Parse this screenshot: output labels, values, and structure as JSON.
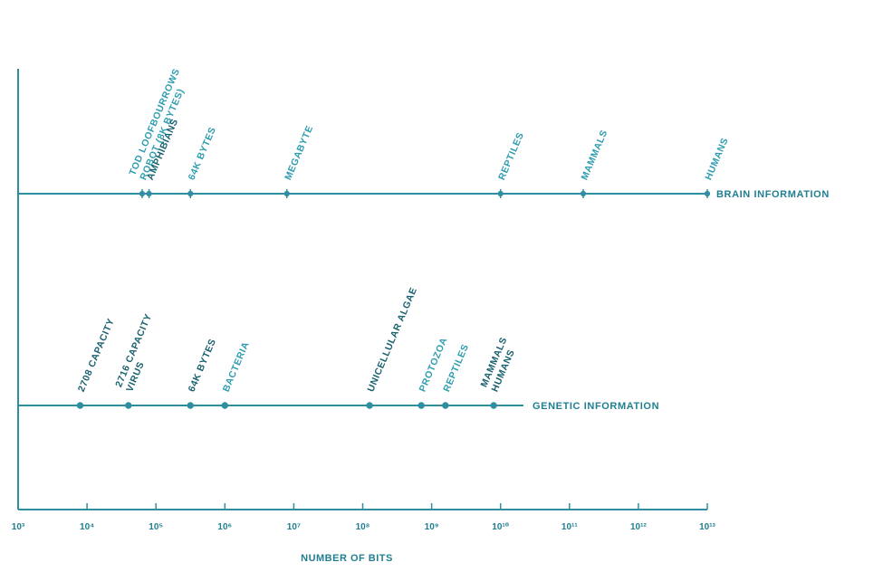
{
  "chart_data": {
    "type": "scatter",
    "title": "",
    "xlabel": "NUMBER OF BITS",
    "ylabel": "",
    "x_scale": "log10",
    "xlim_exponents": [
      3,
      13
    ],
    "x_tick_labels": [
      "10³",
      "10⁴",
      "10⁵",
      "10⁶",
      "10⁷",
      "10⁸",
      "10⁹",
      "10¹⁰",
      "10¹¹",
      "10¹²",
      "10¹³"
    ],
    "grid": false,
    "series": [
      {
        "name": "BRAIN INFORMATION",
        "marker": "tick",
        "points": [
          {
            "label": "TOD LOOFBOURROWS ROBOT (8K BYTES)",
            "log10_bits": 4.8,
            "emphasis": "light",
            "label_lines": [
              "TOD LOOFBOURROWS",
              "ROBOT (8K BYTES)"
            ]
          },
          {
            "label": "AMPHIBIANS",
            "log10_bits": 4.9,
            "emphasis": "bold",
            "label_lines": [
              "AMPHIBIANS"
            ]
          },
          {
            "label": "64K BYTES",
            "log10_bits": 5.5,
            "emphasis": "light",
            "label_lines": [
              "64K BYTES"
            ]
          },
          {
            "label": "MEGABYTE",
            "log10_bits": 6.9,
            "emphasis": "light",
            "label_lines": [
              "MEGABYTE"
            ]
          },
          {
            "label": "REPTILES",
            "log10_bits": 10.0,
            "emphasis": "light",
            "label_lines": [
              "REPTILES"
            ]
          },
          {
            "label": "MAMMALS",
            "log10_bits": 11.2,
            "emphasis": "light",
            "label_lines": [
              "MAMMALS"
            ]
          },
          {
            "label": "HUMANS",
            "log10_bits": 13.0,
            "emphasis": "light",
            "label_lines": [
              "HUMANS"
            ]
          }
        ]
      },
      {
        "name": "GENETIC INFORMATION",
        "marker": "dot",
        "points": [
          {
            "label": "2708 CAPACITY",
            "log10_bits": 3.9,
            "emphasis": "bold",
            "label_lines": [
              "2708 CAPACITY"
            ]
          },
          {
            "label": "2716 CAPACITY VIRUS",
            "log10_bits": 4.6,
            "emphasis": "bold",
            "label_lines": [
              "2716 CAPACITY",
              "VIRUS"
            ]
          },
          {
            "label": "64K BYTES",
            "log10_bits": 5.5,
            "emphasis": "bold",
            "label_lines": [
              "64K BYTES"
            ]
          },
          {
            "label": "BACTERIA",
            "log10_bits": 6.0,
            "emphasis": "light",
            "label_lines": [
              "BACTERIA"
            ]
          },
          {
            "label": "UNICELLULAR ALGAE",
            "log10_bits": 8.1,
            "emphasis": "bold",
            "label_lines": [
              "UNICELLULAR ALGAE"
            ]
          },
          {
            "label": "PROTOZOA",
            "log10_bits": 8.85,
            "emphasis": "light",
            "label_lines": [
              "PROTOZOA"
            ]
          },
          {
            "label": "REPTILES",
            "log10_bits": 9.2,
            "emphasis": "light",
            "label_lines": [
              "REPTILES"
            ]
          },
          {
            "label": "MAMMALS HUMANS",
            "log10_bits": 9.9,
            "emphasis": "bold",
            "label_lines": [
              "MAMMALS",
              "HUMANS"
            ]
          }
        ]
      }
    ]
  },
  "colors": {
    "line": "#2f8fa0",
    "text_bold": "#18616f",
    "text_light": "#2f9db0"
  }
}
